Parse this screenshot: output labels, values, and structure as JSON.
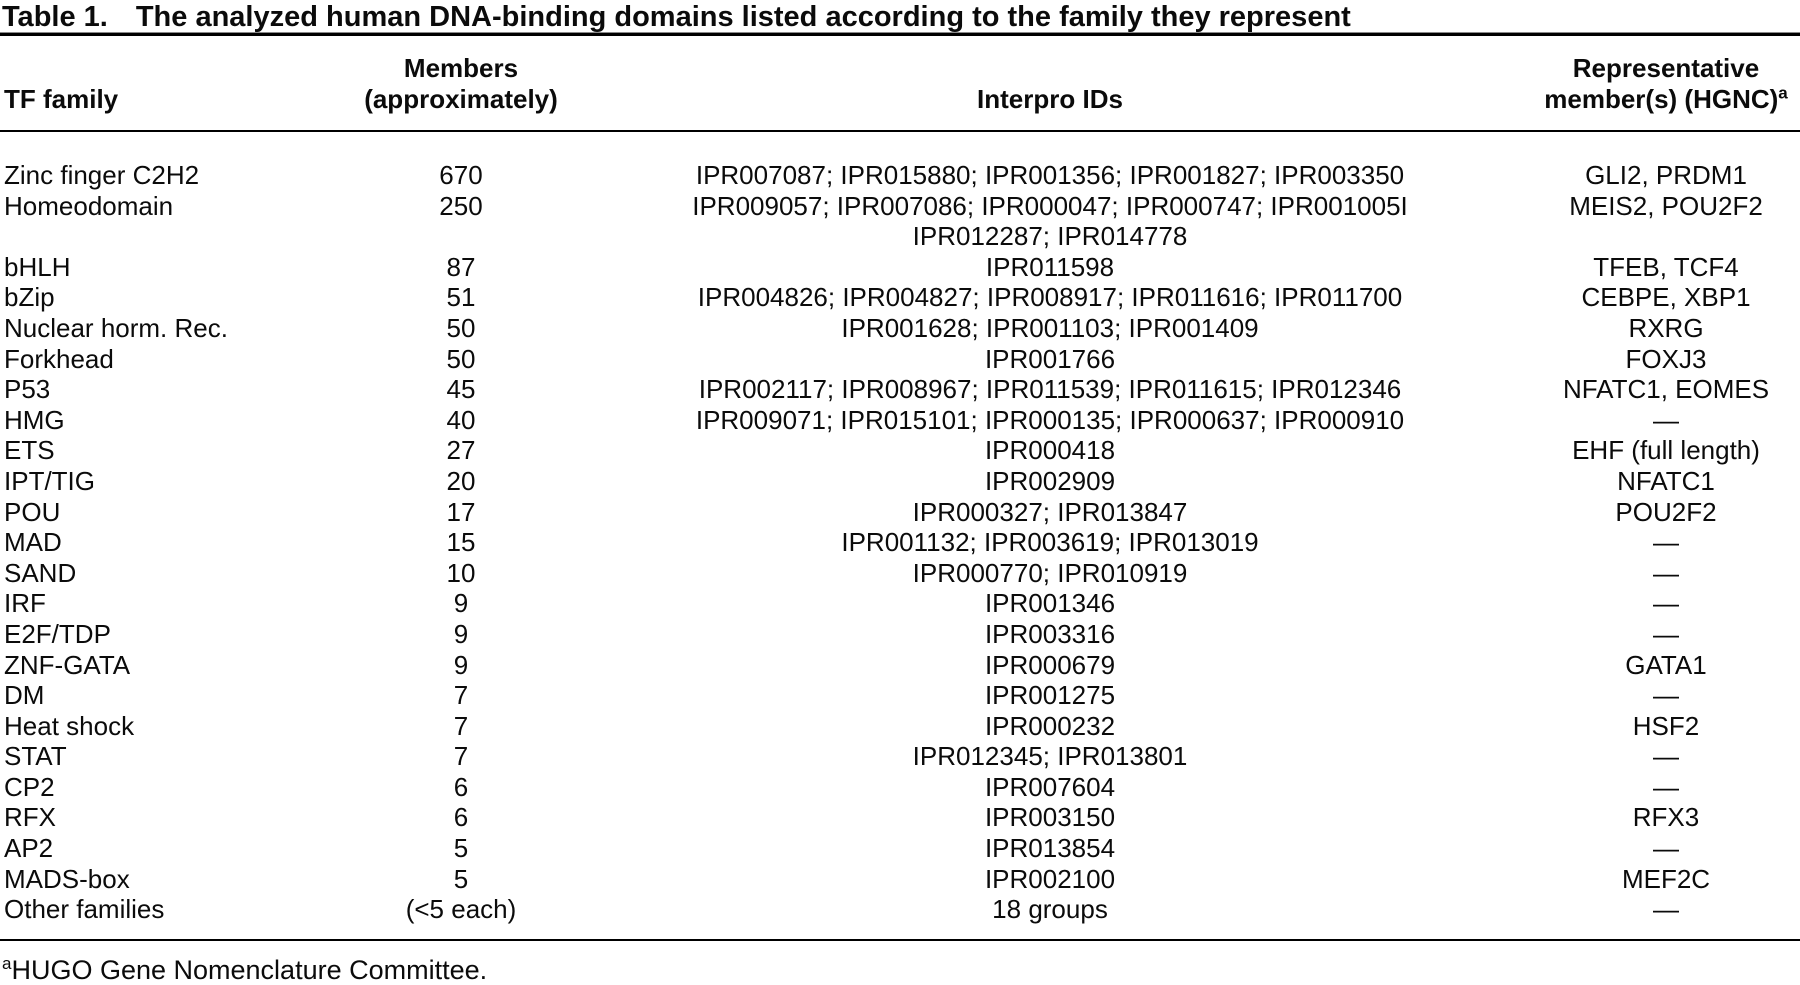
{
  "table": {
    "label": "Table 1.",
    "title": "The analyzed human DNA-binding domains listed according to the family they represent",
    "columns": {
      "family": {
        "label": "TF family"
      },
      "members": {
        "label_line1": "Members",
        "label_line2": "(approximately)"
      },
      "interpro": {
        "label": "Interpro IDs"
      },
      "representative": {
        "label_line1": "Representative",
        "label_line2": "member(s) (HGNC)",
        "label_sup": "a"
      }
    },
    "rows": [
      {
        "family": "Zinc finger C2H2",
        "members": "670",
        "interpro": [
          "IPR007087; IPR015880; IPR001356; IPR001827; IPR003350"
        ],
        "representative": "GLI2, PRDM1"
      },
      {
        "family": "Homeodomain",
        "members": "250",
        "interpro": [
          "IPR009057; IPR007086; IPR000047; IPR000747; IPR001005I",
          "IPR012287; IPR014778"
        ],
        "representative": "MEIS2, POU2F2"
      },
      {
        "family": "bHLH",
        "members": "87",
        "interpro": [
          "IPR011598"
        ],
        "representative": "TFEB, TCF4"
      },
      {
        "family": "bZip",
        "members": "51",
        "interpro": [
          "IPR004826; IPR004827; IPR008917; IPR011616; IPR011700"
        ],
        "representative": "CEBPE, XBP1"
      },
      {
        "family": "Nuclear horm. Rec.",
        "members": "50",
        "interpro": [
          "IPR001628; IPR001103; IPR001409"
        ],
        "representative": "RXRG"
      },
      {
        "family": "Forkhead",
        "members": "50",
        "interpro": [
          "IPR001766"
        ],
        "representative": "FOXJ3"
      },
      {
        "family": "P53",
        "members": "45",
        "interpro": [
          "IPR002117; IPR008967; IPR011539; IPR011615; IPR012346"
        ],
        "representative": "NFATC1, EOMES"
      },
      {
        "family": "HMG",
        "members": "40",
        "interpro": [
          "IPR009071; IPR015101; IPR000135; IPR000637; IPR000910"
        ],
        "representative": "—"
      },
      {
        "family": "ETS",
        "members": "27",
        "interpro": [
          "IPR000418"
        ],
        "representative": "EHF (full length)"
      },
      {
        "family": "IPT/TIG",
        "members": "20",
        "interpro": [
          "IPR002909"
        ],
        "representative": "NFATC1"
      },
      {
        "family": "POU",
        "members": "17",
        "interpro": [
          "IPR000327; IPR013847"
        ],
        "representative": "POU2F2"
      },
      {
        "family": "MAD",
        "members": "15",
        "interpro": [
          "IPR001132; IPR003619; IPR013019"
        ],
        "representative": "—"
      },
      {
        "family": "SAND",
        "members": "10",
        "interpro": [
          "IPR000770; IPR010919"
        ],
        "representative": "—"
      },
      {
        "family": "IRF",
        "members": "9",
        "interpro": [
          "IPR001346"
        ],
        "representative": "—"
      },
      {
        "family": "E2F/TDP",
        "members": "9",
        "interpro": [
          "IPR003316"
        ],
        "representative": "—"
      },
      {
        "family": "ZNF-GATA",
        "members": "9",
        "interpro": [
          "IPR000679"
        ],
        "representative": "GATA1"
      },
      {
        "family": "DM",
        "members": "7",
        "interpro": [
          "IPR001275"
        ],
        "representative": "—"
      },
      {
        "family": "Heat shock",
        "members": "7",
        "interpro": [
          "IPR000232"
        ],
        "representative": "HSF2"
      },
      {
        "family": "STAT",
        "members": "7",
        "interpro": [
          "IPR012345; IPR013801"
        ],
        "representative": "—"
      },
      {
        "family": "CP2",
        "members": "6",
        "interpro": [
          "IPR007604"
        ],
        "representative": "—"
      },
      {
        "family": "RFX",
        "members": "6",
        "interpro": [
          "IPR003150"
        ],
        "representative": "RFX3"
      },
      {
        "family": "AP2",
        "members": "5",
        "interpro": [
          "IPR013854"
        ],
        "representative": "—"
      },
      {
        "family": "MADS-box",
        "members": "5",
        "interpro": [
          "IPR002100"
        ],
        "representative": "MEF2C"
      },
      {
        "family": "Other families",
        "members": "(<5 each)",
        "interpro": [
          "18 groups"
        ],
        "representative": "—"
      }
    ],
    "footnote": {
      "sup": "a",
      "text": "HUGO Gene Nomenclature Committee."
    }
  },
  "colors": {
    "text": "#0b0b0b",
    "rule": "#000000",
    "background": "#ffffff"
  }
}
